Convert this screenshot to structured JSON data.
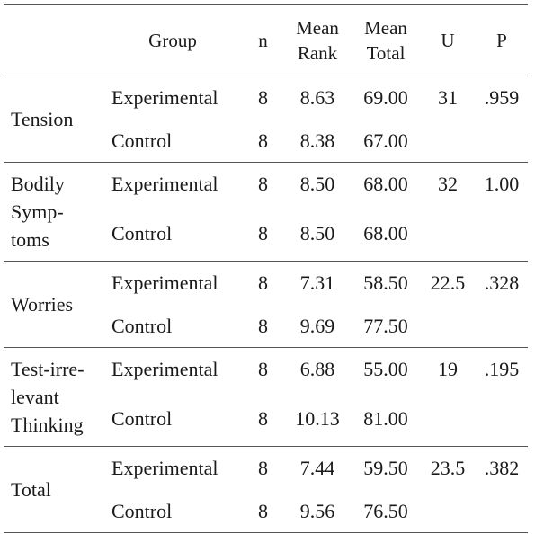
{
  "table": {
    "headers": {
      "measure": "",
      "group": "Group",
      "n": "n",
      "mean_rank": "Mean\nRank",
      "mean_total": "Mean\nTotal",
      "u": "U",
      "p": "P"
    },
    "rows": [
      {
        "measure": "Tension",
        "u": "31",
        "p": ".959",
        "groups": [
          {
            "group": "Experimental",
            "n": "8",
            "mean_rank": "8.63",
            "mean_total": "69.00"
          },
          {
            "group": "Control",
            "n": "8",
            "mean_rank": "8.38",
            "mean_total": "67.00"
          }
        ]
      },
      {
        "measure": "Bodily\nSymp-\ntoms",
        "u": "32",
        "p": "1.00",
        "groups": [
          {
            "group": "Experimental",
            "n": "8",
            "mean_rank": "8.50",
            "mean_total": "68.00"
          },
          {
            "group": "Control",
            "n": "8",
            "mean_rank": "8.50",
            "mean_total": "68.00"
          }
        ]
      },
      {
        "measure": "Worries",
        "u": "22.5",
        "p": ".328",
        "groups": [
          {
            "group": "Experimental",
            "n": "8",
            "mean_rank": "7.31",
            "mean_total": "58.50"
          },
          {
            "group": "Control",
            "n": "8",
            "mean_rank": "9.69",
            "mean_total": "77.50"
          }
        ]
      },
      {
        "measure": "Test-irre-\nlevant\nThinking",
        "u": "19",
        "p": ".195",
        "groups": [
          {
            "group": "Experimental",
            "n": "8",
            "mean_rank": "6.88",
            "mean_total": "55.00"
          },
          {
            "group": "Control",
            "n": "8",
            "mean_rank": "10.13",
            "mean_total": "81.00"
          }
        ]
      },
      {
        "measure": "Total",
        "u": "23.5",
        "p": ".382",
        "groups": [
          {
            "group": "Experimental",
            "n": "8",
            "mean_rank": "7.44",
            "mean_total": "59.50"
          },
          {
            "group": "Control",
            "n": "8",
            "mean_rank": "9.56",
            "mean_total": "76.50"
          }
        ]
      }
    ]
  }
}
